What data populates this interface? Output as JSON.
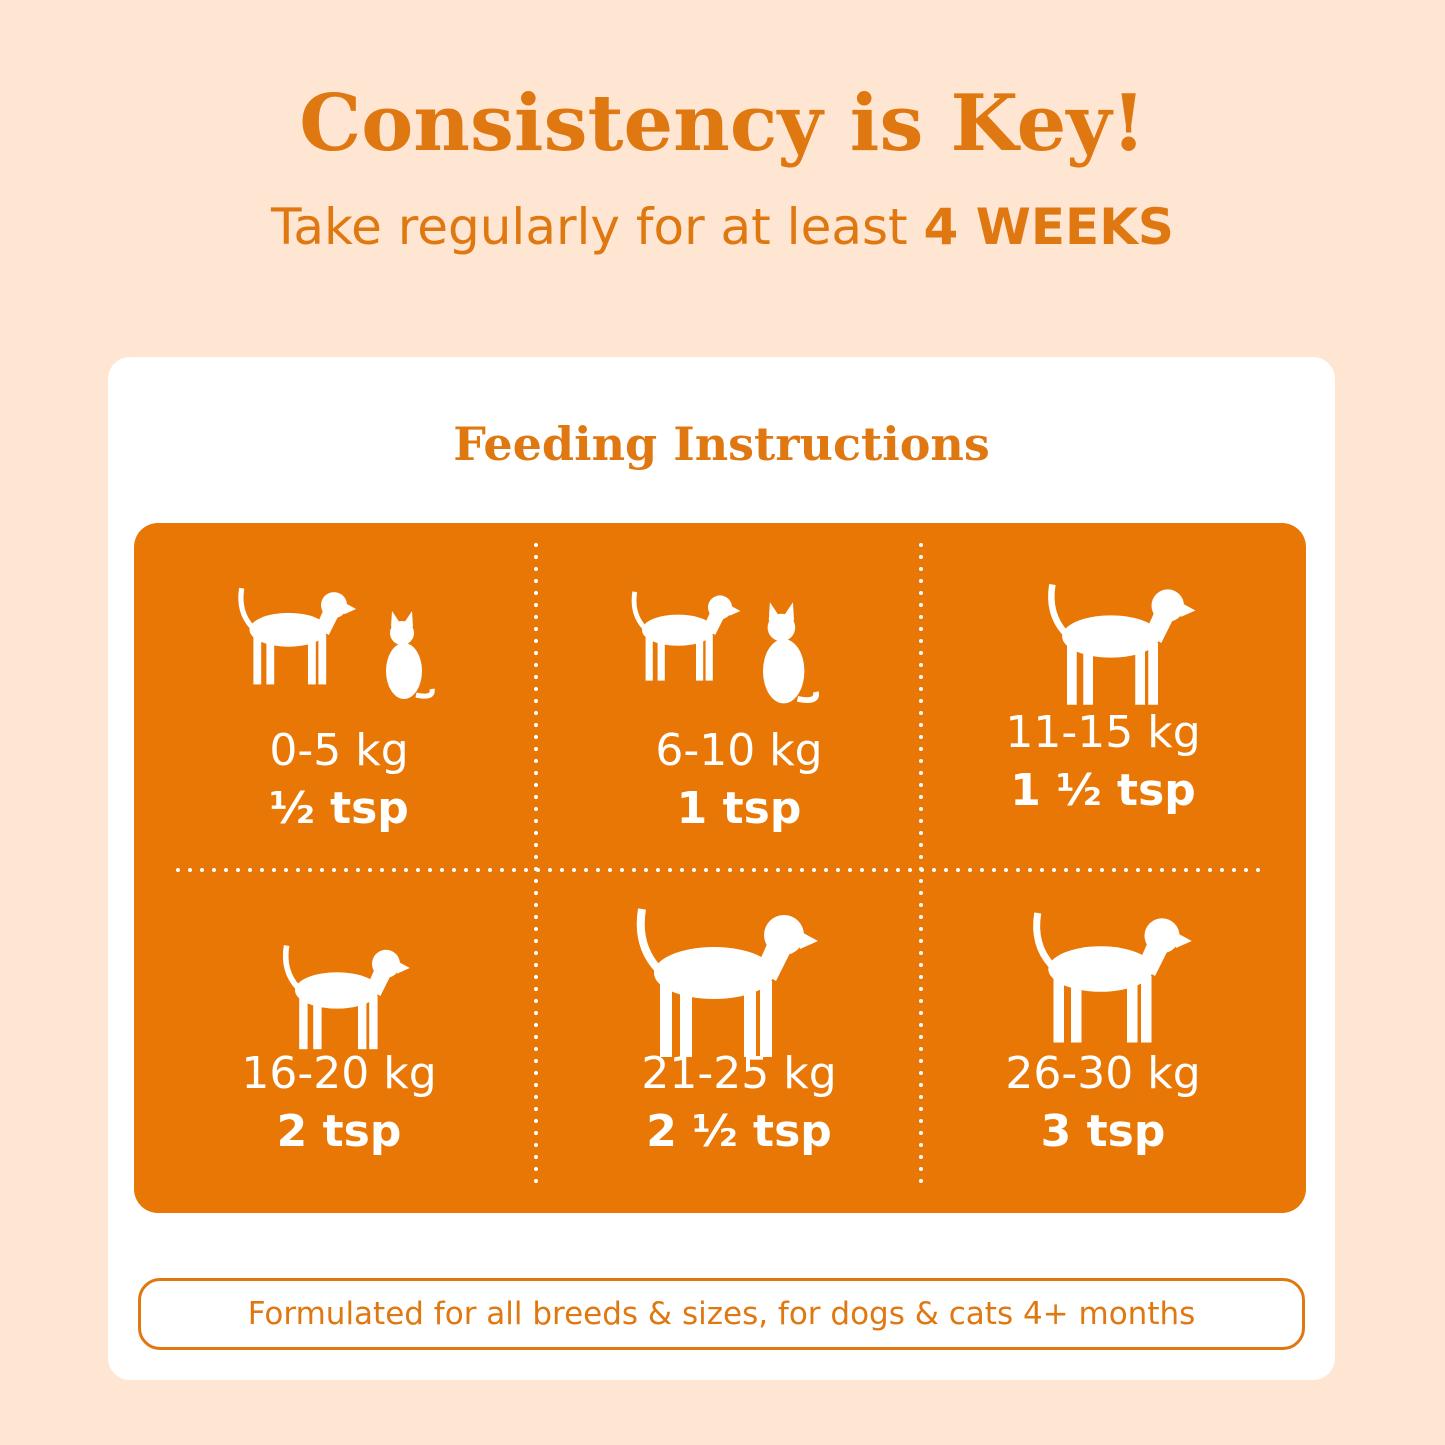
{
  "header": {
    "title": "Consistency is Key!",
    "subtitle": "Take regularly for at least",
    "subtitle_emphasis": "4 WEEKS"
  },
  "card": {
    "title": "Feeding Instructions",
    "cells": [
      {
        "weight": "0-5 kg",
        "dose": "½ tsp"
      },
      {
        "weight": "6-10 kg",
        "dose": "1 tsp"
      },
      {
        "weight": "11-15 kg",
        "dose": "1 ½ tsp"
      },
      {
        "weight": "16-20 kg",
        "dose": "2 tsp"
      },
      {
        "weight": "21-25 kg",
        "dose": "2 ½ tsp"
      },
      {
        "weight": "26-30 kg",
        "dose": "3 tsp"
      }
    ],
    "note": "Formulated for all breeds & sizes, for dogs & cats 4+ months"
  }
}
